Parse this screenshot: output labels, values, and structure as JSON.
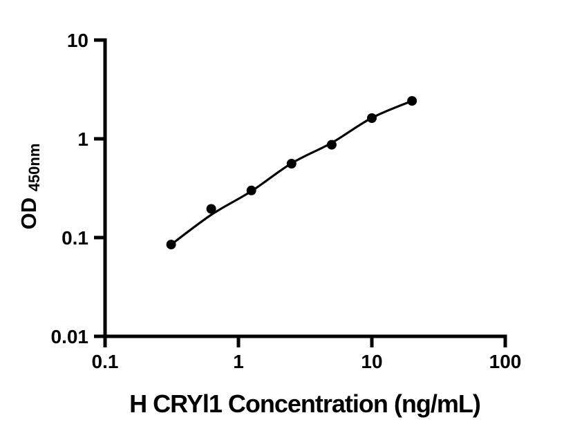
{
  "figure": {
    "background": "#ffffff",
    "ink_color": "#000000"
  },
  "chart_data": {
    "type": "scatter",
    "subtype": "log-log ELISA standard curve with fitted line",
    "title": "",
    "xlabel": "H CRYl1 Concentration (ng/mL)",
    "ylabel_main": "OD",
    "ylabel_sub": "450nm",
    "xscale": "log",
    "yscale": "log",
    "xlim": [
      0.1,
      100
    ],
    "ylim": [
      0.01,
      10
    ],
    "x": [
      0.313,
      0.625,
      1.25,
      2.5,
      5,
      10,
      20
    ],
    "y": [
      0.085,
      0.195,
      0.3,
      0.56,
      0.87,
      1.62,
      2.42
    ],
    "fit_y": [
      0.085,
      0.17,
      0.295,
      0.565,
      0.91,
      1.63,
      2.42
    ],
    "x_tick_values": [
      0.1,
      1,
      10,
      100
    ],
    "x_tick_labels": [
      "0.1",
      "1",
      "10",
      "100"
    ],
    "y_tick_values": [
      10,
      1,
      0.1,
      0.01
    ],
    "y_tick_labels": [
      "10",
      "1",
      "0.1",
      "0.01"
    ],
    "grid": "off",
    "legend": "none",
    "marker": "filled-circle",
    "marker_color": "#000000",
    "line_color": "#000000",
    "axis_color": "#000000"
  }
}
